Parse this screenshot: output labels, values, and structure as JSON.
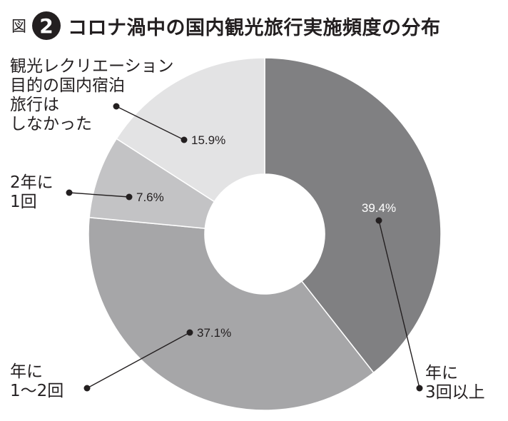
{
  "header": {
    "prefix": "図",
    "number": "2",
    "title": "コロナ渦中の国内観光旅行実施頻度の分布"
  },
  "chart_data": {
    "type": "pie",
    "title": "コロナ渦中の国内観光旅行実施頻度の分布",
    "donut": true,
    "start": "12 o'clock, clockwise",
    "slices": [
      {
        "label": "年に\n3回以上",
        "value": 39.4,
        "value_label": "39.4%",
        "color": "#808082",
        "value_text_color": "#ffffff"
      },
      {
        "label": "年に\n1〜2回",
        "value": 37.1,
        "value_label": "37.1%",
        "color": "#a6a6a8",
        "value_text_color": "#231f20"
      },
      {
        "label": "2年に\n1回",
        "value": 7.6,
        "value_label": "7.6%",
        "color": "#c3c3c5",
        "value_text_color": "#231f20"
      },
      {
        "label": "観光レクリエーション\n目的の国内宿泊\n旅行は\nしなかった",
        "value": 15.9,
        "value_label": "15.9%",
        "color": "#e3e3e4",
        "value_text_color": "#231f20"
      }
    ]
  }
}
